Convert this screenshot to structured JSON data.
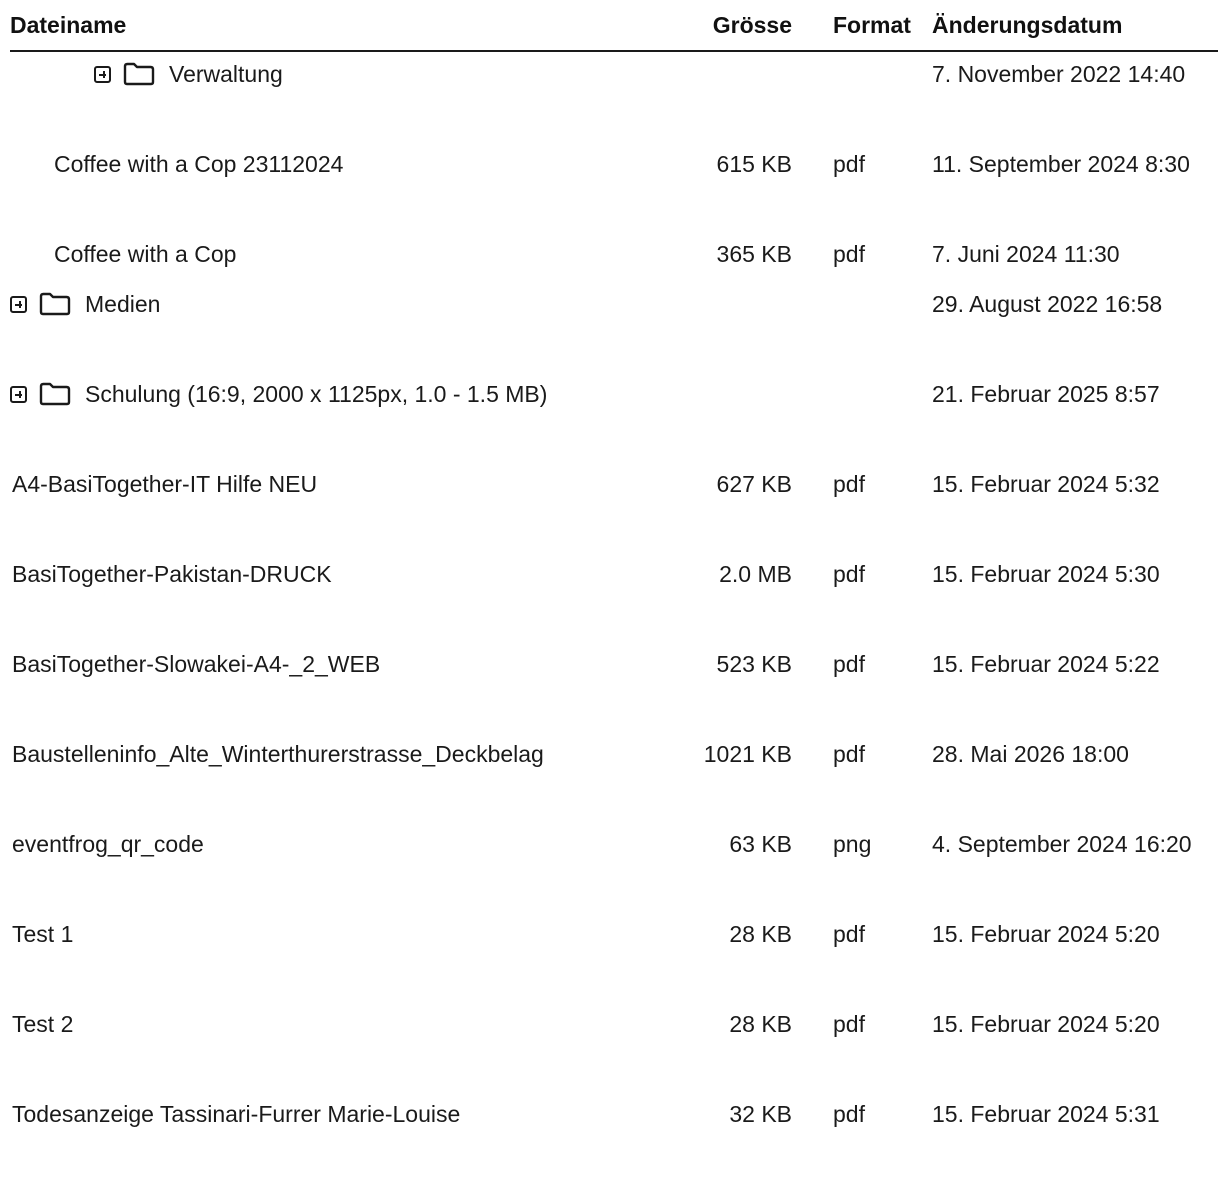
{
  "columns": {
    "name": "Dateiname",
    "size": "Grösse",
    "format": "Format",
    "modified": "Änderungsdatum"
  },
  "rows": [
    {
      "type": "folder",
      "level": 2,
      "name": "Verwaltung",
      "size": "",
      "format": "",
      "modified": "7. November 2022 14:40"
    },
    {
      "type": "file",
      "level": 1,
      "name": "Coffee with a Cop 23112024",
      "size": "615 KB",
      "format": "pdf",
      "modified": "11. September 2024 8:30"
    },
    {
      "type": "file",
      "level": 1,
      "name": "Coffee with a Cop",
      "size": "365 KB",
      "format": "pdf",
      "modified": "7. Juni 2024 11:30"
    },
    {
      "type": "folder",
      "level": 0,
      "name": "Medien",
      "size": "",
      "format": "",
      "modified": "29. August 2022 16:58"
    },
    {
      "type": "folder",
      "level": 0,
      "name": "Schulung (16:9, 2000 x 1125px, 1.0 - 1.5 MB)",
      "size": "",
      "format": "",
      "modified": "21. Februar 2025 8:57"
    },
    {
      "type": "file",
      "level": 0,
      "name": "A4-BasiTogether-IT Hilfe NEU",
      "size": "627 KB",
      "format": "pdf",
      "modified": "15. Februar 2024 5:32"
    },
    {
      "type": "file",
      "level": 0,
      "name": "BasiTogether-Pakistan-DRUCK",
      "size": "2.0 MB",
      "format": "pdf",
      "modified": "15. Februar 2024 5:30"
    },
    {
      "type": "file",
      "level": 0,
      "name": "BasiTogether-Slowakei-A4-_2_WEB",
      "size": "523 KB",
      "format": "pdf",
      "modified": "15. Februar 2024 5:22"
    },
    {
      "type": "file",
      "level": 0,
      "name": "Baustelleninfo_Alte_Winterthurerstrasse_Deckbelag",
      "size": "1021 KB",
      "format": "pdf",
      "modified": "28. Mai 2026 18:00"
    },
    {
      "type": "file",
      "level": 0,
      "name": "eventfrog_qr_code",
      "size": "63 KB",
      "format": "png",
      "modified": "4. September 2024 16:20"
    },
    {
      "type": "file",
      "level": 0,
      "name": "Test 1",
      "size": "28 KB",
      "format": "pdf",
      "modified": "15. Februar 2024 5:20"
    },
    {
      "type": "file",
      "level": 0,
      "name": "Test 2",
      "size": "28 KB",
      "format": "pdf",
      "modified": "15. Februar 2024 5:20"
    },
    {
      "type": "file",
      "level": 0,
      "name": "Todesanzeige Tassinari-Furrer Marie-Louise",
      "size": "32 KB",
      "format": "pdf",
      "modified": "15. Februar 2024 5:31"
    }
  ],
  "icons": {
    "expand": "plus-square-icon",
    "folder": "folder-outline-icon"
  }
}
